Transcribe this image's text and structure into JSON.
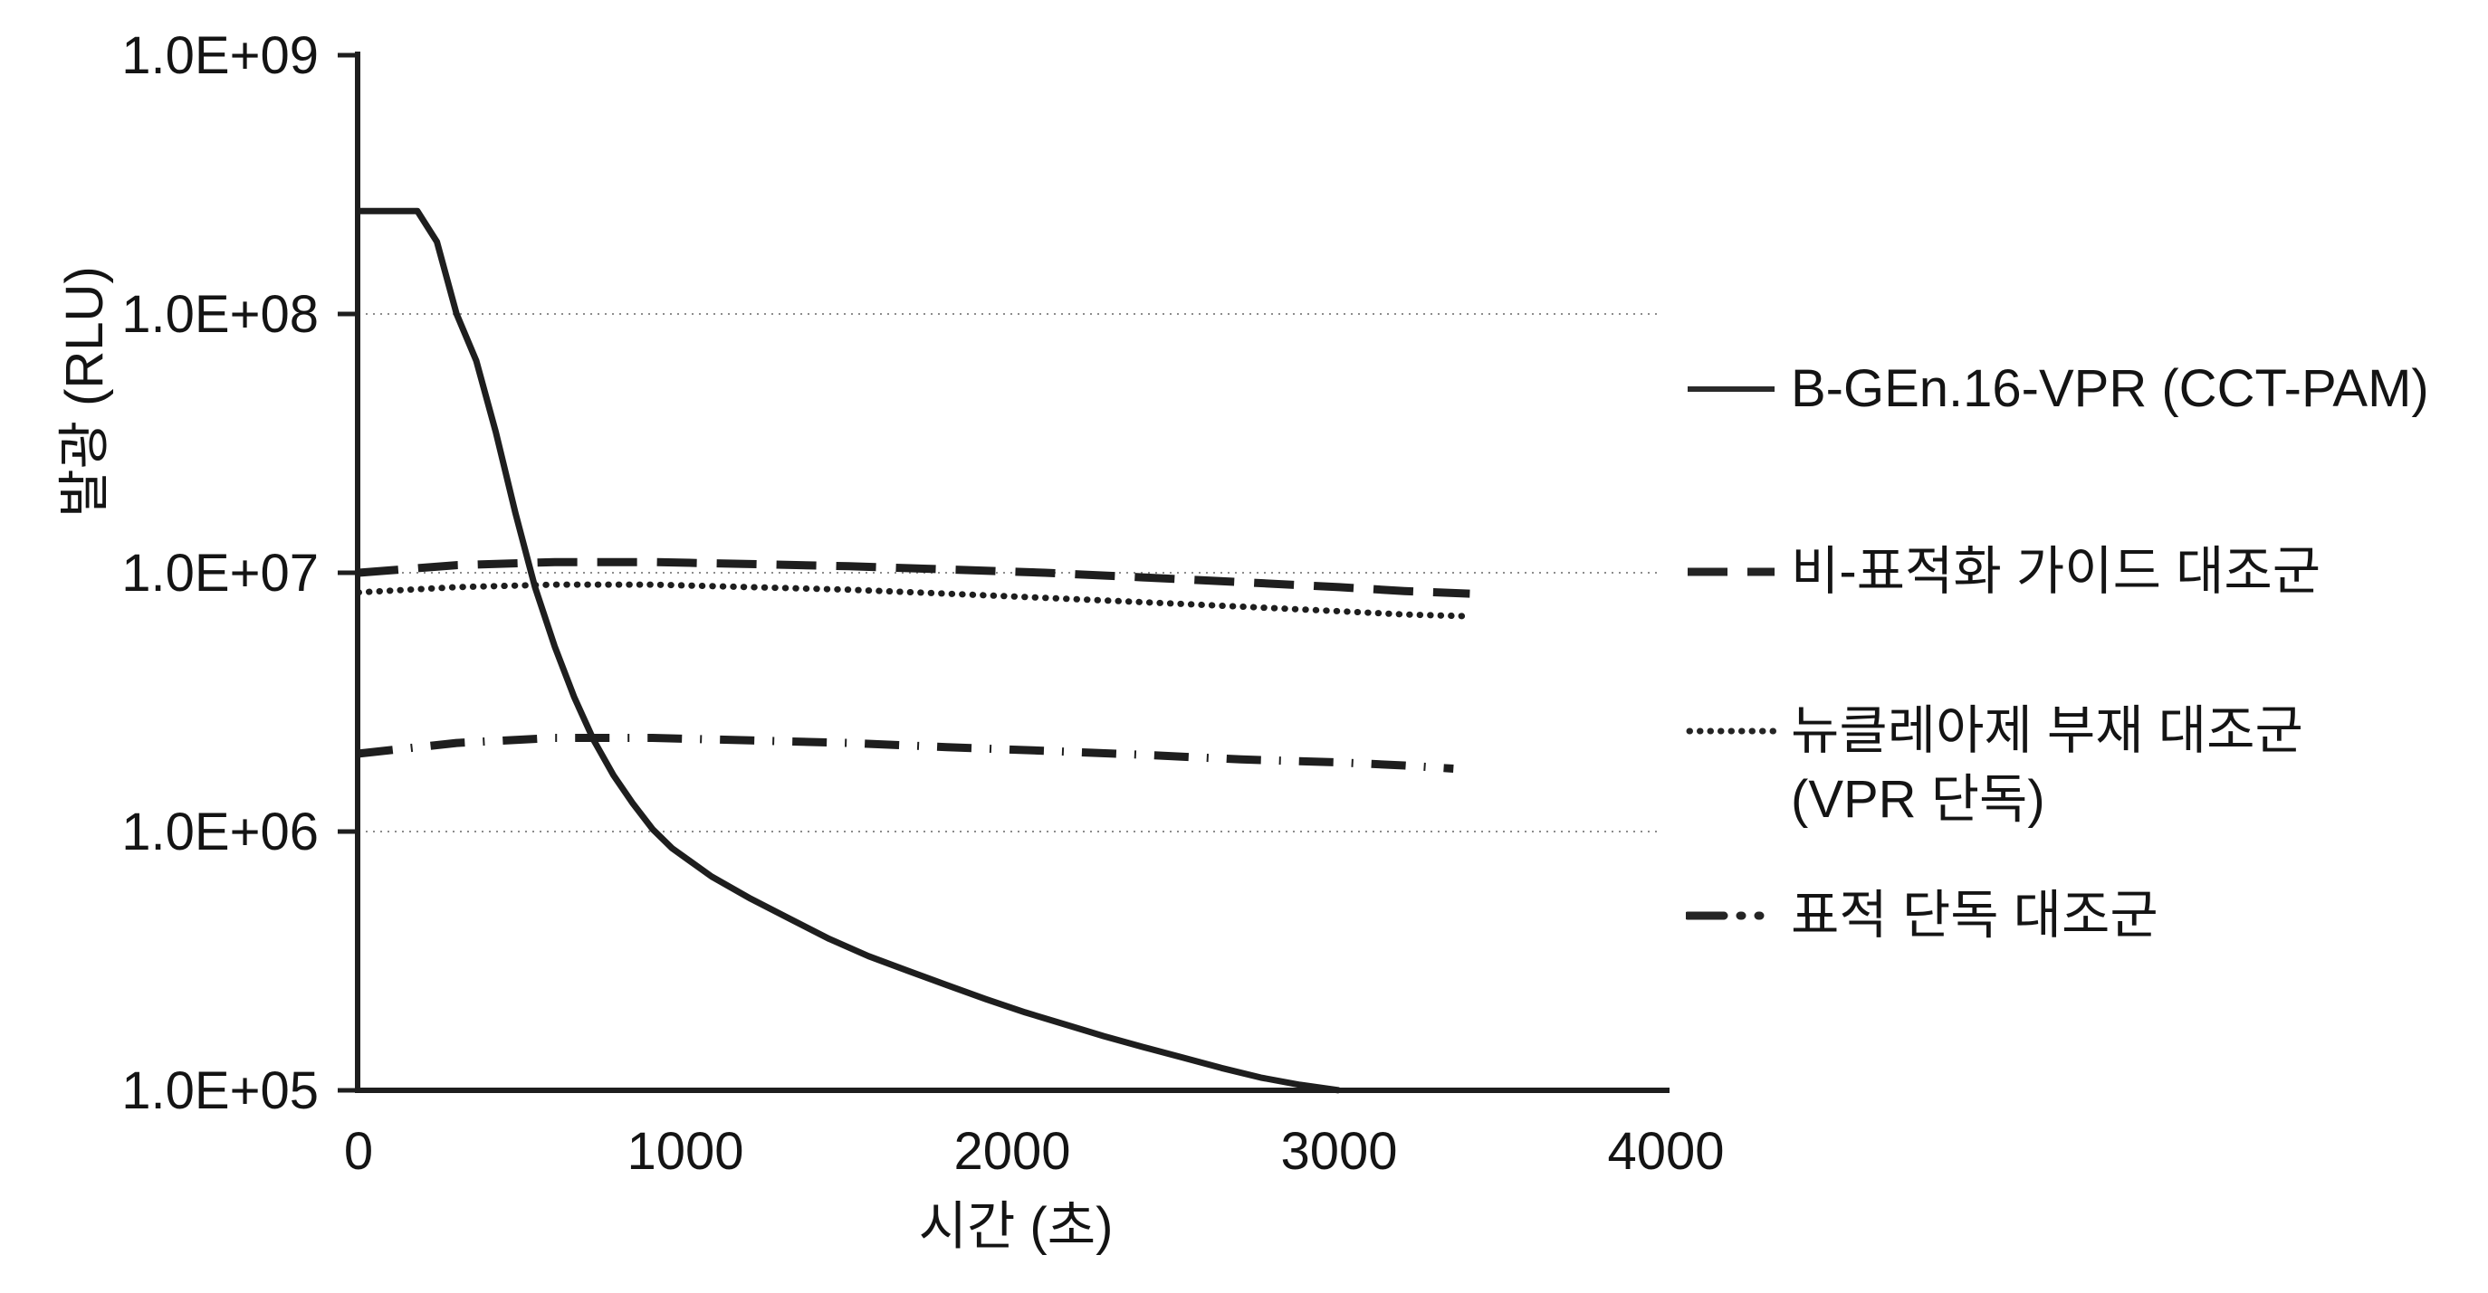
{
  "figure": {
    "background": "#ffffff",
    "ink_color": "#1e1e1e",
    "text_color": "#141414",
    "grid_color": "#8c8c8c"
  },
  "chart_data": {
    "type": "line",
    "title": "",
    "xlabel": "시간 (초)",
    "ylabel": "발광 (RLU)",
    "x_ticks": [
      0,
      1000,
      2000,
      3000,
      4000
    ],
    "x_tick_labels": [
      "0",
      "1000",
      "2000",
      "3000",
      "4000"
    ],
    "y_tick_labels": [
      "1.0E+09",
      "1.0E+08",
      "1.0E+07",
      "1.0E+06",
      "1.0E+05"
    ],
    "y_tick_decades": [
      9,
      8,
      7,
      6,
      5
    ],
    "y_scale": "log10",
    "xlim": [
      0,
      4000
    ],
    "ylim": [
      100000,
      1000000000
    ],
    "grid": "horizontal dotted gridlines at 1.0E+08, 1.0E+07, 1.0E+06",
    "grid_decades": [
      8,
      7,
      6
    ],
    "legend_position": "right-outside",
    "series": [
      {
        "name": "B-GEn.16-VPR (CCT-PAM)",
        "legend_lines": [
          "B-GEn.16-VPR (CCT-PAM)"
        ],
        "style": "solid",
        "points": [
          [
            0,
            250000000
          ],
          [
            180,
            250000000
          ],
          [
            240,
            190000000
          ],
          [
            300,
            100000000
          ],
          [
            360,
            66000000
          ],
          [
            420,
            35000000
          ],
          [
            480,
            17000000
          ],
          [
            540,
            8800000
          ],
          [
            600,
            5200000
          ],
          [
            660,
            3300000
          ],
          [
            720,
            2250000
          ],
          [
            780,
            1650000
          ],
          [
            840,
            1280000
          ],
          [
            900,
            1020000
          ],
          [
            960,
            860000
          ],
          [
            1080,
            670000
          ],
          [
            1200,
            550000
          ],
          [
            1320,
            460000
          ],
          [
            1440,
            385000
          ],
          [
            1560,
            330000
          ],
          [
            1680,
            290000
          ],
          [
            1800,
            255000
          ],
          [
            1920,
            225000
          ],
          [
            2040,
            200000
          ],
          [
            2160,
            180000
          ],
          [
            2280,
            162000
          ],
          [
            2400,
            147000
          ],
          [
            2520,
            134000
          ],
          [
            2640,
            122000
          ],
          [
            2760,
            112000
          ],
          [
            2880,
            105000
          ],
          [
            3000,
            100000
          ]
        ]
      },
      {
        "name": "비-표적화 가이드 대조군",
        "legend_lines": [
          "비-표적화 가이드 대조군"
        ],
        "style": "dashed",
        "points": [
          [
            0,
            10000000
          ],
          [
            300,
            10700000
          ],
          [
            600,
            11000000
          ],
          [
            900,
            11000000
          ],
          [
            1200,
            10800000
          ],
          [
            1500,
            10600000
          ],
          [
            1800,
            10300000
          ],
          [
            2100,
            10000000
          ],
          [
            2400,
            9600000
          ],
          [
            2700,
            9200000
          ],
          [
            3000,
            8800000
          ],
          [
            3200,
            8500000
          ],
          [
            3400,
            8300000
          ]
        ]
      },
      {
        "name": "뉴클레아제 부재 대조군 (VPR 단독)",
        "legend_lines": [
          "뉴클레아제 부재 대조군",
          "(VPR 단독)"
        ],
        "style": "dotted",
        "points": [
          [
            0,
            8400000
          ],
          [
            300,
            8800000
          ],
          [
            600,
            9000000
          ],
          [
            900,
            9000000
          ],
          [
            1200,
            8800000
          ],
          [
            1500,
            8600000
          ],
          [
            1800,
            8300000
          ],
          [
            2100,
            8000000
          ],
          [
            2400,
            7700000
          ],
          [
            2700,
            7400000
          ],
          [
            3000,
            7100000
          ],
          [
            3200,
            6900000
          ],
          [
            3380,
            6800000
          ]
        ]
      },
      {
        "name": "표적 단독 대조군",
        "legend_lines": [
          "표적 단독 대조군"
        ],
        "style": "dashdot",
        "points": [
          [
            0,
            2000000
          ],
          [
            300,
            2200000
          ],
          [
            600,
            2300000
          ],
          [
            900,
            2300000
          ],
          [
            1200,
            2250000
          ],
          [
            1500,
            2200000
          ],
          [
            1800,
            2120000
          ],
          [
            2100,
            2050000
          ],
          [
            2400,
            1980000
          ],
          [
            2700,
            1900000
          ],
          [
            3000,
            1850000
          ],
          [
            3200,
            1800000
          ],
          [
            3350,
            1750000
          ]
        ]
      }
    ]
  }
}
